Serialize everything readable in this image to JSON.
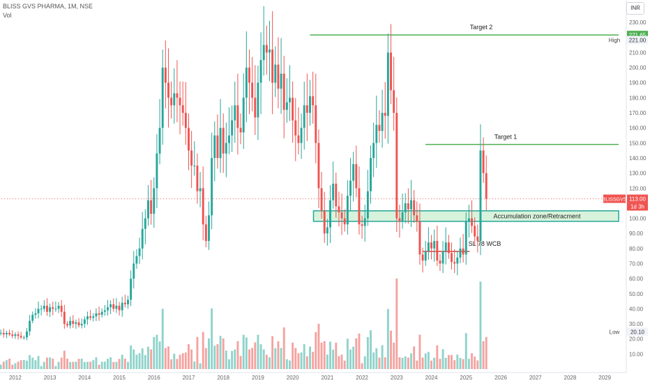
{
  "header": {
    "symbol_line": "BLISS GVS PHARMA, 1M, NSE",
    "volume_label": "Vol",
    "currency": "INR"
  },
  "colors": {
    "up": "#26a69a",
    "down": "#ef5350",
    "up_vol": "#8fd3cb",
    "down_vol": "#f4a3a0",
    "target": "#4caf50",
    "stop": "#e53935",
    "zone_fill": "#d8f3dc",
    "zone_stroke": "#26a69a"
  },
  "chart_data": {
    "type": "candlestick",
    "y_axis_ticks": [
      "230.00",
      "220.00",
      "210.00",
      "200.00",
      "190.00",
      "180.00",
      "170.00",
      "160.00",
      "150.00",
      "140.00",
      "130.00",
      "120.00",
      "110.00",
      "100.00",
      "90.00",
      "80.00",
      "70.00",
      "60.00",
      "50.00",
      "40.00",
      "30.00",
      "20.00",
      "10.00"
    ],
    "x_axis_ticks": [
      "2012",
      "2013",
      "2014",
      "2015",
      "2016",
      "2017",
      "2018",
      "2019",
      "2020",
      "2021",
      "2022",
      "2023",
      "2024",
      "2025",
      "2026",
      "2027",
      "2028",
      "2029"
    ],
    "price_badges": [
      {
        "label": "221.65",
        "value": 221.65,
        "color": "#4caf50"
      },
      {
        "label": "High",
        "value_text": "221.00",
        "value": 221.0
      },
      {
        "label": "BLISSGVS",
        "value_text": "113.00",
        "sub": "1d 3h",
        "value": 113.0,
        "color": "#ef5350"
      },
      {
        "label": "Low",
        "value_text": "20.10",
        "value": 20.1
      }
    ],
    "annotations": [
      {
        "text": "Target 2",
        "price": 221.65,
        "type": "line",
        "from": 2020.5,
        "to": 2029.4
      },
      {
        "text": "Target 1",
        "price": 149,
        "type": "line",
        "from": 2023.83,
        "to": 2029.4
      },
      {
        "text": "Accumulation zone/Retracment",
        "price_low": 98,
        "price_high": 105,
        "type": "zone",
        "from": 2020.6,
        "to": 2029.4
      },
      {
        "text": "SL 78 WCB",
        "price": 78,
        "type": "line",
        "from": 2023.75,
        "to": 2025.1
      }
    ],
    "series": [
      {
        "name": "BLISSGVS",
        "kind": "ohlc",
        "start_year": 2011.5,
        "step": 0.08333,
        "closes": [
          24,
          24,
          23,
          24,
          23,
          22,
          23,
          22,
          21,
          21,
          25,
          32,
          36,
          37,
          40,
          40,
          42,
          38,
          41,
          40,
          40,
          42,
          38,
          30,
          29,
          32,
          30,
          31,
          29,
          30,
          33,
          35,
          34,
          35,
          37,
          36,
          38,
          39,
          41,
          43,
          40,
          42,
          39,
          44,
          43,
          46,
          60,
          70,
          75,
          80,
          93,
          100,
          112,
          103,
          120,
          143,
          160,
          200,
          190,
          180,
          175,
          183,
          180,
          175,
          170,
          160,
          145,
          135,
          135,
          118,
          120,
          96,
          85,
          102,
          140,
          155,
          140,
          160,
          143,
          150,
          155,
          165,
          175,
          160,
          157,
          180,
          200,
          190,
          180,
          167,
          190,
          205,
          215,
          210,
          212,
          190,
          202,
          186,
          196,
          172,
          177,
          180,
          165,
          155,
          150,
          160,
          175,
          170,
          181,
          175,
          150,
          120,
          105,
          90,
          94,
          112,
          123,
          108,
          104,
          100,
          96,
          115,
          125,
          136,
          120,
          96,
          95,
          100,
          118,
          140,
          150,
          162,
          158,
          170,
          168,
          210,
          185,
          170,
          100,
          98,
          104,
          110,
          106,
          112,
          102,
          98,
          76,
          72,
          78,
          84,
          80,
          85,
          72,
          70,
          78,
          84,
          77,
          71,
          70,
          74,
          80,
          76,
          98,
          100,
          95,
          88,
          85,
          145,
          130,
          113
        ],
        "volumes_approx_max": 60
      },
      {
        "name": "Vol",
        "kind": "volume"
      }
    ],
    "y_range": [
      0,
      231
    ],
    "x_range": [
      2011.6,
      2029.6
    ],
    "grid": false,
    "legend": "none"
  }
}
